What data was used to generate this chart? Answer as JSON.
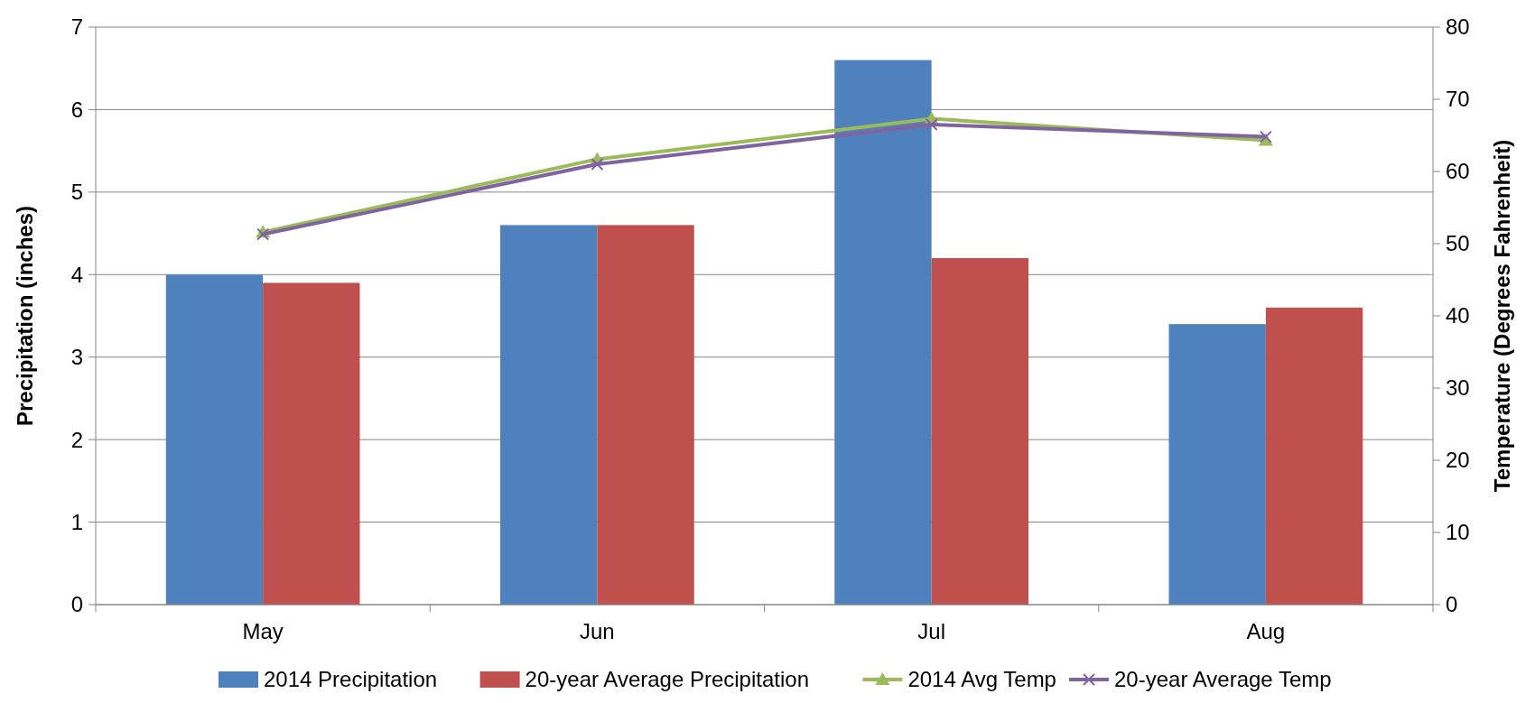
{
  "chart_data": {
    "type": "bar",
    "categories": [
      "May",
      "Jun",
      "Jul",
      "Aug"
    ],
    "ylabel": "Precipitation (inches)",
    "y2label": "Temperature (Degrees Fahrenheit)",
    "ylim": [
      0,
      7
    ],
    "yticks": [
      0,
      1,
      2,
      3,
      4,
      5,
      6,
      7
    ],
    "y2lim": [
      0,
      80
    ],
    "y2ticks": [
      0,
      10,
      20,
      30,
      40,
      50,
      60,
      70,
      80
    ],
    "grid": "y",
    "legend": "bottom",
    "series": [
      {
        "name": "2014 Precipitation",
        "color": "#4f81bd",
        "values": [
          4.0,
          4.6,
          6.6,
          3.4
        ]
      },
      {
        "name": "20-year Average Precipitation",
        "color": "#c0504d",
        "values": [
          3.9,
          4.6,
          4.2,
          3.6
        ]
      },
      {
        "name": "2014 Avg Temp",
        "type": "line",
        "axis": "y2",
        "marker": "triangle",
        "color": "#9bbb59",
        "values": [
          51.6,
          61.7,
          67.3,
          64.3
        ]
      },
      {
        "name": "20-year Average Temp",
        "type": "line",
        "axis": "y2",
        "marker": "cross",
        "color": "#8064a2",
        "values": [
          51.3,
          61.0,
          66.5,
          64.8
        ]
      }
    ]
  }
}
